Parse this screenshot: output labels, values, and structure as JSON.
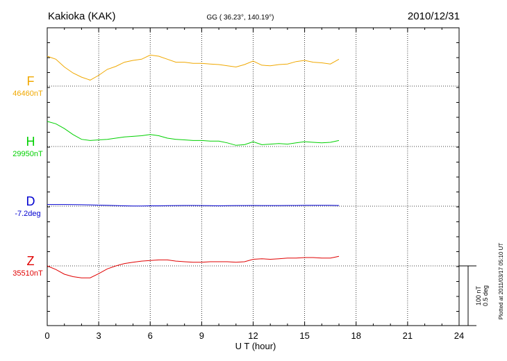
{
  "header": {
    "station": "Kakioka (KAK)",
    "coords": "GG ( 36.23°, 140.19°)",
    "date": "2010/12/31"
  },
  "footer": {
    "plotted": "Plotted at 2011/03/17 05:10 UT"
  },
  "scale_bar": {
    "label1": "100 nT",
    "label2": "0.5 deg"
  },
  "chart_data": {
    "type": "line",
    "xlabel": "U T (hour)",
    "xlim": [
      0,
      24
    ],
    "xticks": [
      0,
      3,
      6,
      9,
      12,
      15,
      18,
      21,
      24
    ],
    "grid": true,
    "scale_nT_per_bar": 100,
    "series": [
      {
        "name": "F",
        "baseline_label": "46460nT",
        "color": "#f0a800",
        "x": [
          0,
          0.5,
          1,
          1.5,
          2,
          2.5,
          3,
          3.5,
          4,
          4.5,
          5,
          5.5,
          6,
          6.5,
          7,
          7.5,
          8,
          8.5,
          9,
          9.5,
          10,
          10.5,
          11,
          11.5,
          12,
          12.5,
          13,
          13.5,
          14,
          14.5,
          15,
          15.5,
          16,
          16.5,
          17
        ],
        "values": [
          46510,
          46505,
          46492,
          46482,
          46475,
          46470,
          46478,
          46488,
          46493,
          46500,
          46503,
          46505,
          46512,
          46510,
          46505,
          46500,
          46500,
          46498,
          46498,
          46497,
          46496,
          46494,
          46492,
          46496,
          46502,
          46495,
          46494,
          46496,
          46497,
          46501,
          46503,
          46500,
          46499,
          46497,
          46505
        ]
      },
      {
        "name": "H",
        "baseline_label": "29950nT",
        "color": "#00d000",
        "x": [
          0,
          0.5,
          1,
          1.5,
          2,
          2.5,
          3,
          3.5,
          4,
          4.5,
          5,
          5.5,
          6,
          6.5,
          7,
          7.5,
          8,
          8.5,
          9,
          9.5,
          10,
          10.5,
          11,
          11.5,
          12,
          12.5,
          13,
          13.5,
          14,
          14.5,
          15,
          15.5,
          16,
          16.5,
          17
        ],
        "values": [
          29992,
          29988,
          29980,
          29970,
          29962,
          29960,
          29961,
          29962,
          29964,
          29966,
          29967,
          29968,
          29970,
          29968,
          29964,
          29962,
          29961,
          29960,
          29960,
          29959,
          29959,
          29956,
          29952,
          29953,
          29958,
          29953,
          29954,
          29955,
          29954,
          29956,
          29958,
          29957,
          29956,
          29957,
          29960
        ]
      },
      {
        "name": "D",
        "baseline_label": "-7.2deg",
        "color": "#0000d0",
        "x": [
          0,
          0.5,
          1,
          1.5,
          2,
          2.5,
          3,
          3.5,
          4,
          4.5,
          5,
          5.5,
          6,
          6.5,
          7,
          7.5,
          8,
          8.5,
          9,
          9.5,
          10,
          10.5,
          11,
          11.5,
          12,
          12.5,
          13,
          13.5,
          14,
          14.5,
          15,
          15.5,
          16,
          16.5,
          17
        ],
        "values": [
          -7.186,
          -7.186,
          -7.186,
          -7.187,
          -7.188,
          -7.189,
          -7.191,
          -7.193,
          -7.195,
          -7.197,
          -7.198,
          -7.198,
          -7.197,
          -7.197,
          -7.196,
          -7.195,
          -7.194,
          -7.194,
          -7.195,
          -7.196,
          -7.197,
          -7.196,
          -7.195,
          -7.195,
          -7.194,
          -7.195,
          -7.195,
          -7.195,
          -7.194,
          -7.194,
          -7.193,
          -7.193,
          -7.193,
          -7.193,
          -7.194
        ]
      },
      {
        "name": "Z",
        "baseline_label": "35510nT",
        "color": "#e00000",
        "x": [
          0,
          0.5,
          1,
          1.5,
          2,
          2.5,
          3,
          3.5,
          4,
          4.5,
          5,
          5.5,
          6,
          6.5,
          7,
          7.5,
          8,
          8.5,
          9,
          9.5,
          10,
          10.5,
          11,
          11.5,
          12,
          12.5,
          13,
          13.5,
          14,
          14.5,
          15,
          15.5,
          16,
          16.5,
          17
        ],
        "values": [
          35510,
          35504,
          35496,
          35492,
          35490,
          35490,
          35497,
          35505,
          35510,
          35514,
          35516,
          35518,
          35519,
          35520,
          35520,
          35518,
          35517,
          35516,
          35516,
          35517,
          35517,
          35517,
          35516,
          35517,
          35521,
          35522,
          35521,
          35522,
          35523,
          35523,
          35524,
          35524,
          35523,
          35523,
          35526
        ]
      }
    ]
  }
}
